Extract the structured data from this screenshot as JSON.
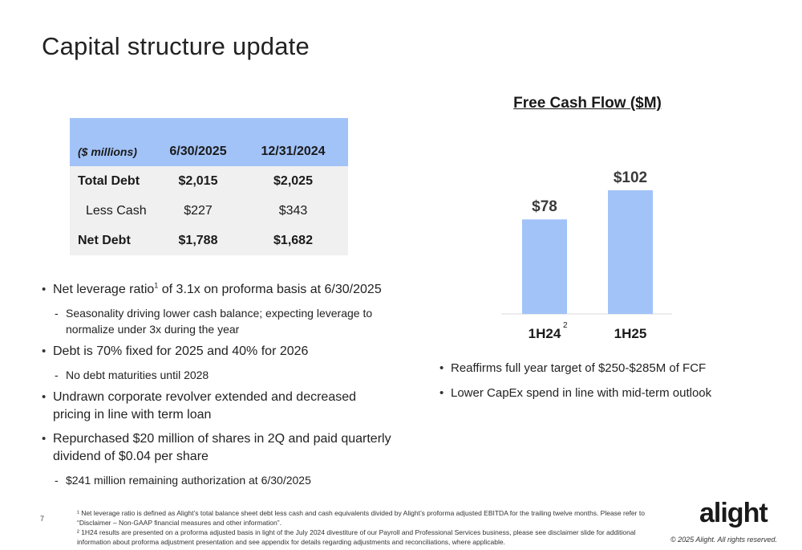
{
  "title": "Capital structure update",
  "debt_table": {
    "headers": [
      "($ millions)",
      "6/30/2025",
      "12/31/2024"
    ],
    "rows": [
      {
        "label": "Total Debt",
        "values": [
          "$2,015",
          "$2,025"
        ]
      },
      {
        "label": "Less Cash",
        "values": [
          "$227",
          "$343"
        ]
      },
      {
        "label": "Net Debt",
        "values": [
          "$1,788",
          "$1,682"
        ]
      }
    ]
  },
  "left_bullets": {
    "b1": {
      "pre": "Net leverage ratio",
      "sup": "1",
      "post": " of 3.1x on proforma basis at 6/30/2025"
    },
    "b1_sub": "Seasonality driving lower cash balance; expecting leverage to normalize under 3x during the year",
    "b2": "Debt is 70% fixed for 2025 and 40% for 2026",
    "b2_sub": "No debt maturities until 2028",
    "b3": "Undrawn corporate revolver extended and decreased pricing in line with term loan",
    "b4": "Repurchased $20 million of shares in 2Q and paid quarterly dividend of $0.04 per share",
    "b4_sub": "$241 million remaining authorization at 6/30/2025"
  },
  "chart_data": {
    "type": "bar",
    "title": "Free Cash Flow ($M)",
    "categories": [
      "1H24",
      "1H25"
    ],
    "category_sups": [
      "2",
      ""
    ],
    "values": [
      78,
      102
    ],
    "data_labels": [
      "$78",
      "$102"
    ],
    "bar_color": "#a2c3f8",
    "ylim": [
      0,
      102
    ]
  },
  "right_bullets": [
    "Reaffirms full year target of $250-$285M of FCF",
    "Lower CapEx spend in line with mid-term outlook"
  ],
  "footer": {
    "page_number": "7",
    "footnote1": "¹ Net leverage ratio is defined as Alight’s total balance sheet debt less cash and cash equivalents divided by Alight’s proforma adjusted EBITDA for the trailing twelve months. Please refer to “Disclaimer – Non-GAAP financial measures and other information”.",
    "footnote2": "² 1H24 results are presented on a proforma adjusted basis in light of the July 2024 divestiture of our Payroll and Professional Services business, please see disclaimer slide for additional information about proforma adjustment presentation and see appendix for details regarding adjustments and reconciliations, where applicable.",
    "logo": "alight",
    "copyright": "© 2025 Alight. All rights reserved."
  }
}
